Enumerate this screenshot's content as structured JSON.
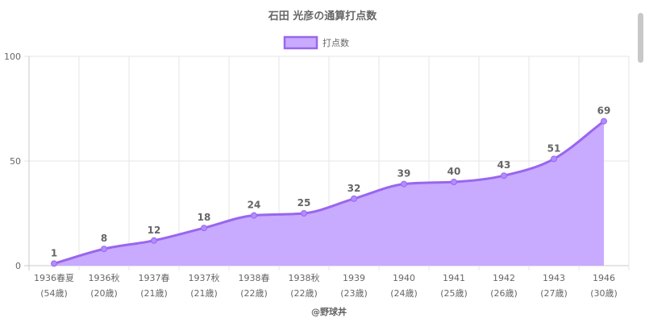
{
  "chart_data": {
    "type": "area",
    "title": "石田 光彦の通算打点数",
    "legend": "打点数",
    "legend_position": "top-center",
    "footer": "@野球丼",
    "ylim": [
      0,
      100
    ],
    "yticks": [
      0,
      50,
      100
    ],
    "grid": true,
    "colors": {
      "fill": "#c8aaff",
      "line": "#9966ee",
      "point": "#b18cff",
      "grid": "#e6e6e6",
      "axis": "#c8c8c8",
      "text": "#666666"
    },
    "categories": [
      [
        "1936春夏",
        "(54歳)"
      ],
      [
        "1936秋",
        "(20歳)"
      ],
      [
        "1937春",
        "(21歳)"
      ],
      [
        "1937秋",
        "(21歳)"
      ],
      [
        "1938春",
        "(22歳)"
      ],
      [
        "1938秋",
        "(22歳)"
      ],
      [
        "1939",
        "(23歳)"
      ],
      [
        "1940",
        "(24歳)"
      ],
      [
        "1941",
        "(25歳)"
      ],
      [
        "1942",
        "(26歳)"
      ],
      [
        "1943",
        "(27歳)"
      ],
      [
        "1946",
        "(30歳)"
      ]
    ],
    "series": [
      {
        "name": "打点数",
        "values": [
          1,
          8,
          12,
          18,
          24,
          25,
          32,
          39,
          40,
          43,
          51,
          69
        ]
      }
    ]
  }
}
